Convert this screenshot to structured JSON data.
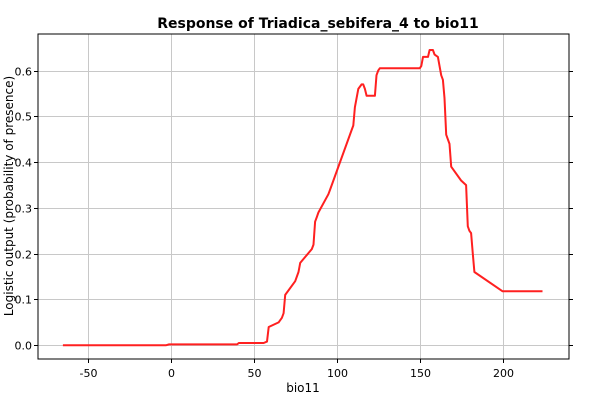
{
  "chart_data": {
    "type": "line",
    "title": "Response of Triadica_sebifera_4 to bio11",
    "xlabel": "bio11",
    "ylabel": "Logistic output (probability of presence)",
    "xlim": [
      -80,
      240
    ],
    "ylim": [
      -0.03,
      0.68
    ],
    "xticks": [
      -50,
      0,
      50,
      100,
      150,
      200
    ],
    "yticks": [
      0.0,
      0.1,
      0.2,
      0.3,
      0.4,
      0.5,
      0.6
    ],
    "xtick_labels": [
      "-50",
      "0",
      "50",
      "100",
      "150",
      "200"
    ],
    "ytick_labels": [
      "0.0",
      "0.1",
      "0.2",
      "0.3",
      "0.4",
      "0.5",
      "0.6"
    ],
    "grid": true,
    "legend": "none",
    "series": [
      {
        "color": "#ff2020",
        "x": [
          -65,
          -3,
          -1,
          40,
          41,
          56,
          58,
          59,
          65,
          67,
          68,
          69,
          75,
          77,
          78,
          85,
          86,
          87,
          88,
          89,
          95,
          96,
          98,
          109,
          110,
          111,
          112,
          113,
          115,
          116,
          117,
          118,
          123,
          124,
          125,
          126,
          150,
          151,
          152,
          155,
          156,
          158,
          159,
          161,
          163,
          164,
          165,
          166,
          168,
          169,
          175,
          178,
          179,
          180,
          181,
          182,
          183,
          200,
          224
        ],
        "y": [
          0.0,
          0.0,
          0.002,
          0.002,
          0.005,
          0.005,
          0.008,
          0.04,
          0.05,
          0.06,
          0.07,
          0.11,
          0.14,
          0.16,
          0.18,
          0.21,
          0.22,
          0.27,
          0.28,
          0.29,
          0.33,
          0.34,
          0.36,
          0.47,
          0.48,
          0.52,
          0.54,
          0.56,
          0.57,
          0.57,
          0.56,
          0.545,
          0.545,
          0.59,
          0.6,
          0.605,
          0.605,
          0.61,
          0.63,
          0.63,
          0.645,
          0.645,
          0.635,
          0.63,
          0.59,
          0.58,
          0.54,
          0.46,
          0.44,
          0.39,
          0.36,
          0.35,
          0.26,
          0.25,
          0.245,
          0.2,
          0.16,
          0.118,
          0.118
        ]
      }
    ]
  }
}
